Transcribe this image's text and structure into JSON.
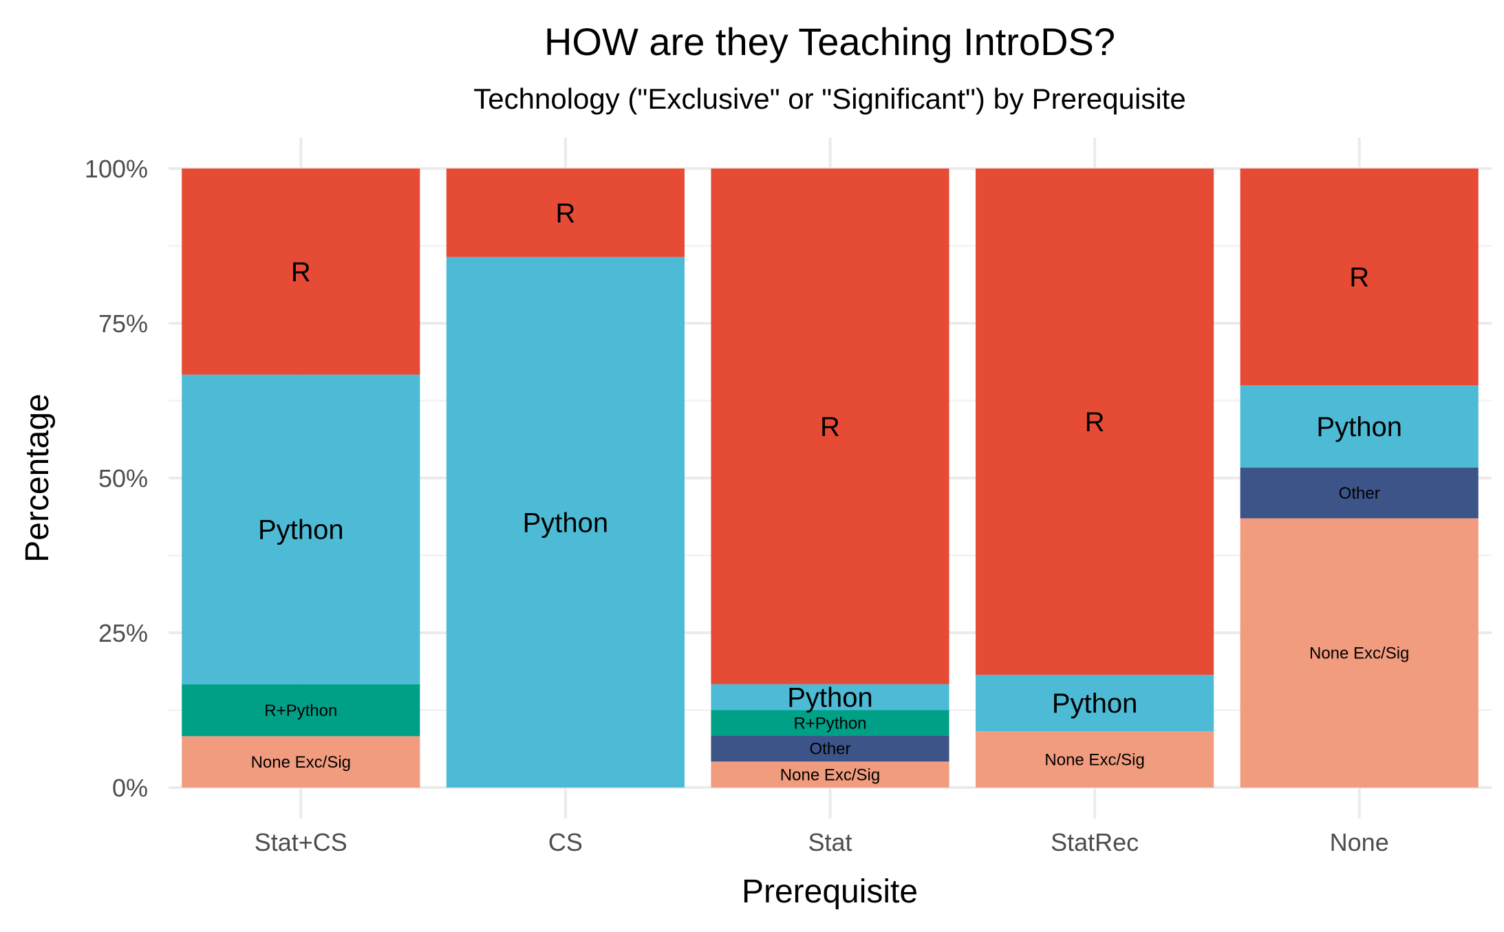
{
  "chart_data": {
    "type": "bar",
    "stacked": true,
    "title": "HOW are they Teaching IntroDS?",
    "subtitle": "Technology (\"Exclusive\" or \"Significant\") by Prerequisite",
    "xlabel": "Prerequisite",
    "ylabel": "Percentage",
    "ylim": [
      0,
      100
    ],
    "y_ticks": [
      "0%",
      "25%",
      "50%",
      "75%",
      "100%"
    ],
    "y_tick_values": [
      0,
      25,
      50,
      75,
      100
    ],
    "grid": true,
    "categories": [
      "Stat+CS",
      "CS",
      "Stat",
      "StatRec",
      "None"
    ],
    "stack_order_bottom_to_top": [
      "None Exc/Sig",
      "Other",
      "R+Python",
      "Python",
      "R"
    ],
    "series": [
      {
        "name": "None Exc/Sig",
        "color": "#f19c7f",
        "values": [
          8.3,
          0,
          4.2,
          9.1,
          43.5
        ],
        "label_size": "small"
      },
      {
        "name": "Other",
        "color": "#3c5488",
        "values": [
          0,
          0,
          4.2,
          0,
          8.2
        ],
        "label_size": "small"
      },
      {
        "name": "R+Python",
        "color": "#00a087",
        "values": [
          8.4,
          0,
          4.1,
          0,
          0
        ],
        "label_size": "small"
      },
      {
        "name": "Python",
        "color": "#4dbbd5",
        "values": [
          50,
          85.7,
          4.2,
          9.1,
          13.3
        ],
        "label_size": "large"
      },
      {
        "name": "R",
        "color": "#e64b35",
        "values": [
          33.3,
          14.3,
          83.3,
          81.8,
          35.0
        ],
        "label_size": "large"
      }
    ]
  }
}
